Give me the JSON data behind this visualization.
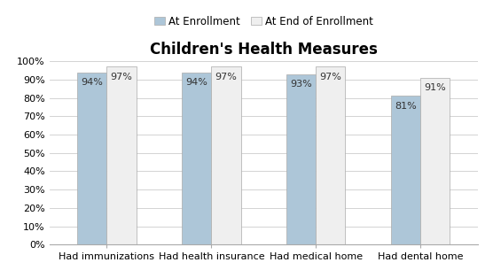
{
  "title": "Children's Health Measures",
  "categories": [
    "Had immunizations",
    "Had health insurance",
    "Had medical home",
    "Had dental home"
  ],
  "series": [
    {
      "label": "At Enrollment",
      "values": [
        94,
        94,
        93,
        81
      ],
      "color": "#adc6d8"
    },
    {
      "label": "At End of Enrollment",
      "values": [
        97,
        97,
        97,
        91
      ],
      "color": "#efefef"
    }
  ],
  "ylim": [
    0,
    100
  ],
  "yticks": [
    0,
    10,
    20,
    30,
    40,
    50,
    60,
    70,
    80,
    90,
    100
  ],
  "ytick_labels": [
    "0%",
    "10%",
    "20%",
    "30%",
    "40%",
    "50%",
    "60%",
    "70%",
    "80%",
    "90%",
    "100%"
  ],
  "title_fontsize": 12,
  "tick_fontsize": 8,
  "legend_fontsize": 8.5,
  "bar_width": 0.28,
  "value_fontsize": 8,
  "background_color": "#ffffff",
  "grid_color": "#cccccc",
  "bar_edgecolor": "#aaaaaa"
}
